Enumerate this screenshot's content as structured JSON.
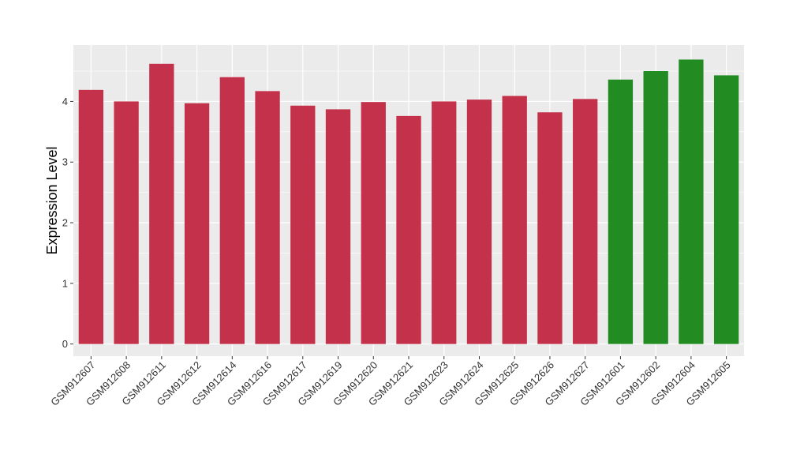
{
  "chart_data": {
    "type": "bar",
    "title": "",
    "xlabel": "",
    "ylabel": "Expression Level",
    "ylim": [
      -0.2,
      4.93
    ],
    "yticks": [
      0,
      1,
      2,
      3,
      4
    ],
    "grid": true,
    "legend": "none",
    "colors": {
      "red": "#C4314B",
      "green": "#228B22",
      "panel": "#EBEBEB",
      "gridline": "#FFFFFF"
    },
    "categories": [
      "GSM912607",
      "GSM912608",
      "GSM912611",
      "GSM912612",
      "GSM912614",
      "GSM912616",
      "GSM912617",
      "GSM912619",
      "GSM912620",
      "GSM912621",
      "GSM912623",
      "GSM912624",
      "GSM912625",
      "GSM912626",
      "GSM912627",
      "GSM912601",
      "GSM912602",
      "GSM912604",
      "GSM912605"
    ],
    "values": [
      4.19,
      4.0,
      4.62,
      3.97,
      4.4,
      4.17,
      3.93,
      3.87,
      3.99,
      3.76,
      4.0,
      4.03,
      4.09,
      3.82,
      4.04,
      4.36,
      4.5,
      4.69,
      4.43
    ],
    "bar_colors": [
      "red",
      "red",
      "red",
      "red",
      "red",
      "red",
      "red",
      "red",
      "red",
      "red",
      "red",
      "red",
      "red",
      "red",
      "red",
      "green",
      "green",
      "green",
      "green"
    ]
  }
}
